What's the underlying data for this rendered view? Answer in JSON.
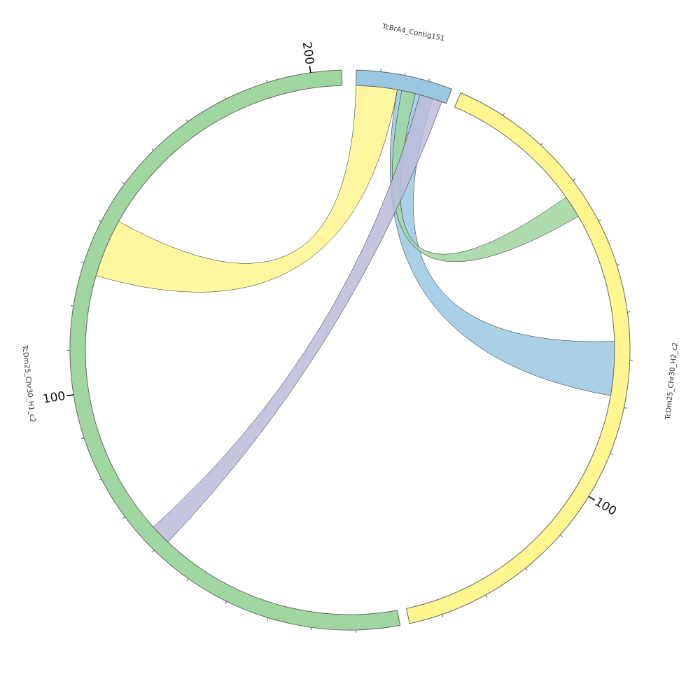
{
  "segments": [
    {
      "id": "contig",
      "name": "TcBrA4_Contig151",
      "color": "#9ac8e2",
      "length": 40,
      "major_ticks": [],
      "minor_step": 10
    },
    {
      "id": "h2",
      "name": "TcDm25_Chr30_H2_c2",
      "color": "#fff68f",
      "length": 147,
      "major_ticks": [
        100
      ],
      "minor_step": 10
    },
    {
      "id": "h1",
      "name": "TcDm25_Chr30_H1_c2",
      "color": "#a0d6a0",
      "length": 207,
      "major_ticks": [
        100,
        200
      ],
      "minor_step": 10
    }
  ],
  "links": [
    {
      "from": {
        "segment": "contig",
        "start": 0,
        "end": 18
      },
      "to": {
        "segment": "h1",
        "start": 128,
        "end": 142
      },
      "color": "#fff68f"
    },
    {
      "from": {
        "segment": "contig",
        "start": 18,
        "end": 34
      },
      "to": {
        "segment": "h2",
        "start": 66,
        "end": 78
      },
      "color": "#9ac8e2"
    },
    {
      "from": {
        "segment": "contig",
        "start": 20,
        "end": 26
      },
      "to": {
        "segment": "h2",
        "start": 32,
        "end": 37
      },
      "color": "#a0d6a0"
    },
    {
      "from": {
        "segment": "contig",
        "start": 28,
        "end": 38
      },
      "to": {
        "segment": "h1",
        "start": 59,
        "end": 64
      },
      "color": "#bcbcdb"
    }
  ]
}
